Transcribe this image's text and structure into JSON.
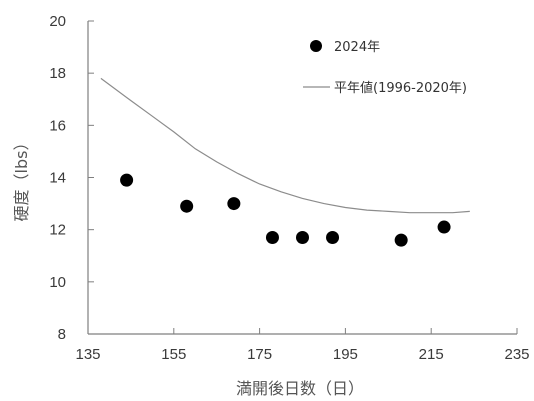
{
  "chart_data": {
    "type": "scatter",
    "xlabel": "満開後日数（日）",
    "ylabel": "硬度（lbs）",
    "xlim": [
      135,
      235
    ],
    "ylim": [
      8,
      20
    ],
    "xticks": [
      135,
      155,
      175,
      195,
      215,
      235
    ],
    "yticks": [
      8,
      10,
      12,
      14,
      16,
      18,
      20
    ],
    "grid": false,
    "legend_position": "top-right",
    "series": [
      {
        "name": "2024年",
        "kind": "scatter",
        "color": "#000000",
        "points": [
          {
            "x": 144,
            "y": 13.9
          },
          {
            "x": 158,
            "y": 12.9
          },
          {
            "x": 169,
            "y": 13.0
          },
          {
            "x": 178,
            "y": 11.7
          },
          {
            "x": 185,
            "y": 11.7
          },
          {
            "x": 192,
            "y": 11.7
          },
          {
            "x": 208,
            "y": 11.6
          },
          {
            "x": 218,
            "y": 12.1
          }
        ]
      },
      {
        "name": "平年値(1996-2020年)",
        "kind": "line",
        "color": "#8c8c8c",
        "points": [
          {
            "x": 138,
            "y": 17.8
          },
          {
            "x": 145,
            "y": 16.95
          },
          {
            "x": 150,
            "y": 16.35
          },
          {
            "x": 155,
            "y": 15.75
          },
          {
            "x": 160,
            "y": 15.1
          },
          {
            "x": 165,
            "y": 14.6
          },
          {
            "x": 170,
            "y": 14.15
          },
          {
            "x": 175,
            "y": 13.75
          },
          {
            "x": 180,
            "y": 13.45
          },
          {
            "x": 185,
            "y": 13.2
          },
          {
            "x": 190,
            "y": 13.0
          },
          {
            "x": 195,
            "y": 12.85
          },
          {
            "x": 200,
            "y": 12.75
          },
          {
            "x": 205,
            "y": 12.7
          },
          {
            "x": 210,
            "y": 12.65
          },
          {
            "x": 215,
            "y": 12.65
          },
          {
            "x": 220,
            "y": 12.65
          },
          {
            "x": 224,
            "y": 12.7
          }
        ]
      }
    ]
  }
}
